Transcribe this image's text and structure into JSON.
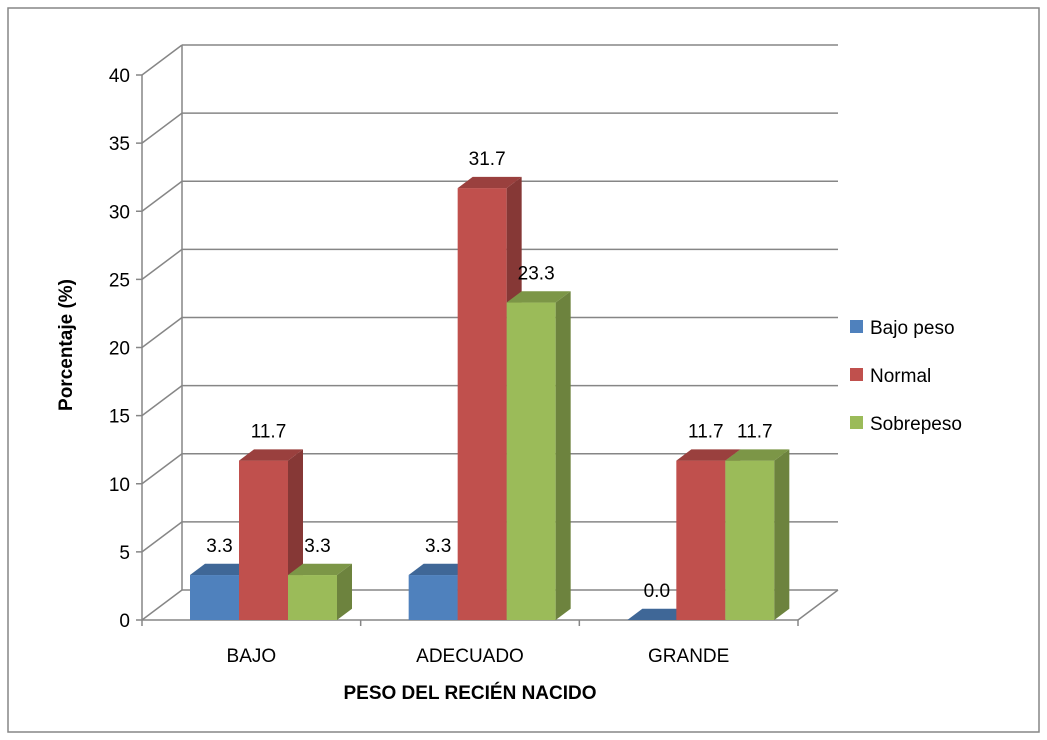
{
  "chart_data": {
    "type": "bar",
    "style": "3d-clustered-column",
    "title": "",
    "xlabel": "PESO DEL RECIÉN NACIDO",
    "ylabel": "Porcentaje (%)",
    "ylim": [
      0,
      40
    ],
    "yticks": [
      "0",
      "5",
      "10",
      "15",
      "20",
      "25",
      "30",
      "35",
      "40"
    ],
    "grid": true,
    "legend": "right",
    "categories": [
      "BAJO",
      "ADECUADO",
      "GRANDE"
    ],
    "series": [
      {
        "name": "Bajo peso",
        "values": [
          3.3,
          3.3,
          0.0
        ],
        "labels": [
          "3.3",
          "3.3",
          "0.0"
        ],
        "color": "#4F81BD"
      },
      {
        "name": "Normal",
        "values": [
          11.7,
          31.7,
          11.7
        ],
        "labels": [
          "11.7",
          "31.7",
          "11.7"
        ],
        "color": "#C0504D"
      },
      {
        "name": "Sobrepeso",
        "values": [
          3.3,
          23.3,
          11.7
        ],
        "labels": [
          "3.3",
          "23.3",
          "11.7"
        ],
        "color": "#9BBB59"
      }
    ]
  }
}
